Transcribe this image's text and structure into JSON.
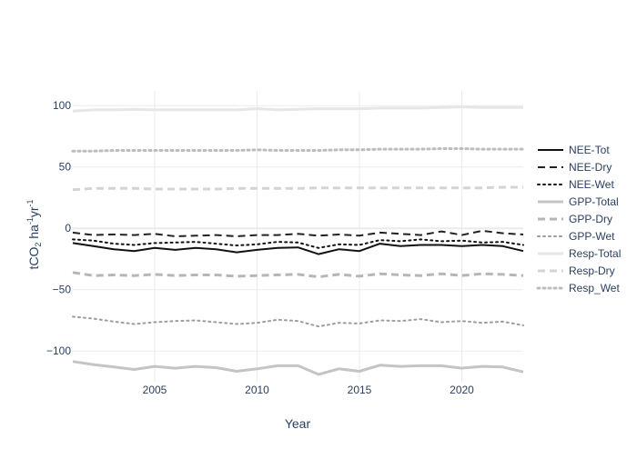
{
  "chart_data": {
    "type": "line",
    "xlabel": "Year",
    "ylabel": {
      "base": "tCO",
      "sub": "2",
      "mid1": " ha",
      "sup1": "-1",
      "mid2": "yr",
      "sup2": "-1"
    },
    "xlim": [
      2001,
      2023
    ],
    "ylim": [
      -125,
      112
    ],
    "x_ticks": [
      2005,
      2010,
      2015,
      2020
    ],
    "y_ticks": [
      -100,
      -50,
      0,
      50,
      100
    ],
    "y_tick_labels": [
      "−100",
      "−50",
      "0",
      "50",
      "100"
    ],
    "grid": true,
    "legend_position": "right",
    "x": [
      2001,
      2002,
      2003,
      2004,
      2005,
      2006,
      2007,
      2008,
      2009,
      2010,
      2011,
      2012,
      2013,
      2014,
      2015,
      2016,
      2017,
      2018,
      2019,
      2020,
      2021,
      2022,
      2023
    ],
    "series": [
      {
        "name": "NEE-Tot",
        "color": "#111111",
        "dash": "solid",
        "width": 2,
        "values": [
          -12,
          -14.5,
          -17,
          -18.5,
          -16,
          -17.5,
          -16,
          -17,
          -19.5,
          -17.5,
          -16,
          -15.5,
          -21,
          -17,
          -18.5,
          -12.5,
          -14.5,
          -13.5,
          -13.5,
          -14.5,
          -13.5,
          -14.5,
          -18.5
        ]
      },
      {
        "name": "NEE-Dry",
        "color": "#222222",
        "dash": "dash",
        "width": 2,
        "values": [
          -3.5,
          -5.5,
          -5,
          -5.5,
          -4.5,
          -6.5,
          -6,
          -5.5,
          -6.5,
          -5.5,
          -5.5,
          -4.5,
          -6,
          -5,
          -6,
          -3.5,
          -4.5,
          -5.5,
          -2.5,
          -5.5,
          -2,
          -4,
          -5
        ]
      },
      {
        "name": "NEE-Wet",
        "color": "#111111",
        "dash": "dot",
        "width": 2,
        "values": [
          -9,
          -10,
          -12.5,
          -13.5,
          -12,
          -11.5,
          -11,
          -12.5,
          -14,
          -13,
          -11,
          -11.5,
          -16,
          -13,
          -13.5,
          -9.5,
          -10.5,
          -9,
          -10.5,
          -10,
          -11.5,
          -11,
          -13.5
        ]
      },
      {
        "name": "GPP-Total",
        "color": "#c4c4c4",
        "dash": "solid",
        "width": 3,
        "values": [
          -108.5,
          -111,
          -113,
          -115,
          -112.5,
          -114,
          -112.5,
          -113.5,
          -116.5,
          -114.5,
          -112,
          -112,
          -119,
          -114.5,
          -116.5,
          -111.5,
          -112.5,
          -112,
          -112,
          -114,
          -112.5,
          -113,
          -117
        ]
      },
      {
        "name": "GPP-Dry",
        "color": "#b6b6b6",
        "dash": "dash",
        "width": 3,
        "values": [
          -36,
          -38.5,
          -38,
          -38.5,
          -37.5,
          -38.5,
          -38,
          -38,
          -39,
          -38.5,
          -38,
          -37.5,
          -39.5,
          -37.5,
          -39,
          -37,
          -38,
          -38.5,
          -37,
          -38.5,
          -37,
          -37.5,
          -38.5
        ]
      },
      {
        "name": "GPP-Wet",
        "color": "#9c9c9c",
        "dash": "dot",
        "width": 2,
        "values": [
          -72,
          -73.5,
          -76,
          -78,
          -76.5,
          -75.5,
          -75,
          -76.5,
          -78,
          -77,
          -74.5,
          -75.5,
          -80,
          -77,
          -77.5,
          -75,
          -75.5,
          -74,
          -76.5,
          -75.5,
          -77,
          -76,
          -79
        ]
      },
      {
        "name": "Resp-Total",
        "color": "#e6e6e6",
        "dash": "solid",
        "width": 3,
        "values": [
          95.5,
          96.5,
          96.5,
          97,
          96.5,
          96.5,
          96.5,
          96.5,
          96.5,
          97.5,
          96.5,
          97,
          97.5,
          97.5,
          97.5,
          98,
          98,
          98,
          98.5,
          99,
          98.5,
          98.5,
          98.5
        ]
      },
      {
        "name": "Resp-Dry",
        "color": "#d4d4d4",
        "dash": "dash",
        "width": 3,
        "values": [
          31.5,
          32.5,
          32.5,
          32.5,
          32,
          32,
          32,
          32,
          32.5,
          32.5,
          32.5,
          32.5,
          33,
          33,
          33,
          33,
          33,
          33,
          33,
          33,
          33,
          33.5,
          33.5
        ]
      },
      {
        "name": "Resp_Wet",
        "color": "#bdbdbd",
        "dash": "dot",
        "width": 3,
        "values": [
          63,
          63,
          63.5,
          63.5,
          63.5,
          63.5,
          63.5,
          63.5,
          63.5,
          64,
          63.5,
          63.5,
          63.5,
          64,
          64,
          64.5,
          64.5,
          64.5,
          65,
          65,
          64.5,
          64.5,
          64.5
        ]
      }
    ]
  }
}
